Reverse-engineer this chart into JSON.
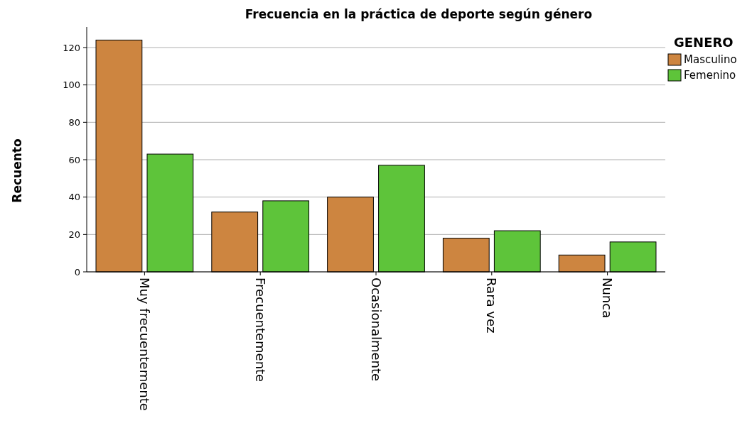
{
  "chart_data": {
    "type": "bar",
    "title": "Frecuencia en la práctica de deporte según género",
    "ylabel": "Recuento",
    "legend_title": "GENERO",
    "categories": [
      "Muy frecuentemente",
      "Frecuentemente",
      "Ocasionalmente",
      "Rara vez",
      "Nunca"
    ],
    "series": [
      {
        "name": "Masculino",
        "color": "#cd8540",
        "values": [
          124,
          32,
          40,
          18,
          9
        ]
      },
      {
        "name": "Femenino",
        "color": "#5ec43a",
        "values": [
          63,
          38,
          57,
          22,
          16
        ]
      }
    ],
    "ylim": [
      0,
      131
    ],
    "yticks": [
      0,
      20,
      40,
      60,
      80,
      100,
      120
    ],
    "grid": "y",
    "legend": "top right"
  }
}
